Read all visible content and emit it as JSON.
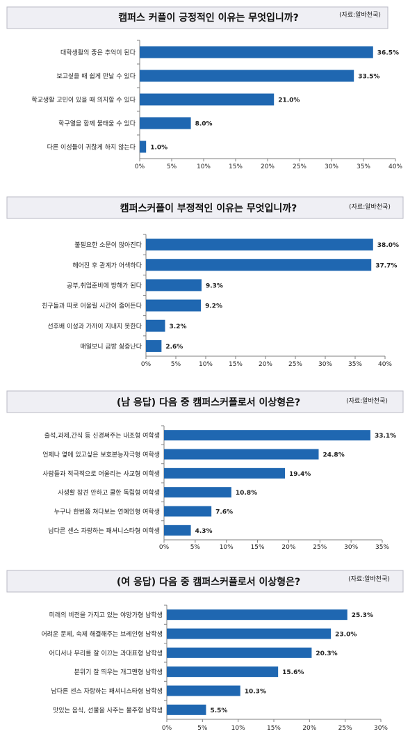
{
  "accent": "#1f67b1",
  "header_bg": "#efeff4",
  "chart_data": [
    {
      "type": "bar",
      "orientation": "horizontal",
      "title": "캠퍼스 커플이 긍정적인 이유는 무엇입니까?",
      "source": "(자료:알바천국)",
      "categories": [
        "대학생활의 좋은 추억이 된다",
        "보고싶을 때 쉽게 만날 수 있다",
        "학교생활 고민이 있을 때 의지할 수 있다",
        "학구열을 함께 불태울 수 있다",
        "다른 이성들이 귀찮게 하지 않는다"
      ],
      "values": [
        36.5,
        33.5,
        21.0,
        8.0,
        1.0
      ],
      "value_labels": [
        "36.5%",
        "33.5%",
        "21.0%",
        "8.0%",
        "1.0%"
      ],
      "xlim": [
        0,
        40
      ],
      "ticks": [
        "0%",
        "5%",
        "10%",
        "15%",
        "20%",
        "25%",
        "30%",
        "35%",
        "40%"
      ],
      "xlabel": "",
      "ylabel": ""
    },
    {
      "type": "bar",
      "orientation": "horizontal",
      "title": "캠퍼스커플이 부정적인 이유는 무엇입니까?",
      "source": "(자료:알바천국)",
      "categories": [
        "불필요한 소문이 많아진다",
        "헤어진 후 관계가 어색하다",
        "공부,취업준비에 방해가 된다",
        "친구들과 따로 어울릴 시간이 줄어든다",
        "선후배 이성과 가까이 지내지 못한다",
        "매일보니 금방 싫증난다"
      ],
      "values": [
        38.0,
        37.7,
        9.3,
        9.2,
        3.2,
        2.6
      ],
      "value_labels": [
        "38.0%",
        "37.7%",
        "9.3%",
        "9.2%",
        "3.2%",
        "2.6%"
      ],
      "xlim": [
        0,
        40
      ],
      "ticks": [
        "0%",
        "5%",
        "10%",
        "15%",
        "20%",
        "25%",
        "30%",
        "35%",
        "40%"
      ],
      "xlabel": "",
      "ylabel": ""
    },
    {
      "type": "bar",
      "orientation": "horizontal",
      "title": "(남 응답) 다음 중 캠퍼스커플로서 이상형은?",
      "source": "(자료:알바천국)",
      "categories": [
        "출석,과제,간식 등 신경써주는 내조형 여학생",
        "언제나 옆에 있고싶은 보호본능자극형 여학생",
        "사람들과 적극적으로 어울리는 사교형 여학생",
        "사생활 참견 안하고 쿨한 독립형 여학생",
        "누구나 한번쯤 쳐다보는 연예인형 여학생",
        "남다른 센스 자랑하는 패셔니스타형 여학생"
      ],
      "values": [
        33.1,
        24.8,
        19.4,
        10.8,
        7.6,
        4.3
      ],
      "value_labels": [
        "33.1%",
        "24.8%",
        "19.4%",
        "10.8%",
        "7.6%",
        "4.3%"
      ],
      "xlim": [
        0,
        35
      ],
      "ticks": [
        "0%",
        "5%",
        "10%",
        "15%",
        "20%",
        "25%",
        "30%",
        "35%"
      ],
      "xlabel": "",
      "ylabel": ""
    },
    {
      "type": "bar",
      "orientation": "horizontal",
      "title": "(여 응답) 다음 중 캠퍼스커플로서 이상형은?",
      "source": "(자료:알바천국)",
      "categories": [
        "미래의 비전을 가지고 있는 야망가형 남학생",
        "어려운 문제, 숙제 해결해주는 브레인형 남학생",
        "어디서나 무리를 잘 이끄는 과대표형 남학생",
        "분위기 잘 띄우는 개그맨형 남학생",
        "남다른 센스 자랑하는 패셔니스타형 남학생",
        "맛있는 음식, 선물을 사주는 물주형 남학생"
      ],
      "values": [
        25.3,
        23.0,
        20.3,
        15.6,
        10.3,
        5.5
      ],
      "value_labels": [
        "25.3%",
        "23.0%",
        "20.3%",
        "15.6%",
        "10.3%",
        "5.5%"
      ],
      "xlim": [
        0,
        30
      ],
      "ticks": [
        "0%",
        "5%",
        "10%",
        "15%",
        "20%",
        "25%",
        "30%"
      ],
      "xlabel": "",
      "ylabel": ""
    }
  ]
}
